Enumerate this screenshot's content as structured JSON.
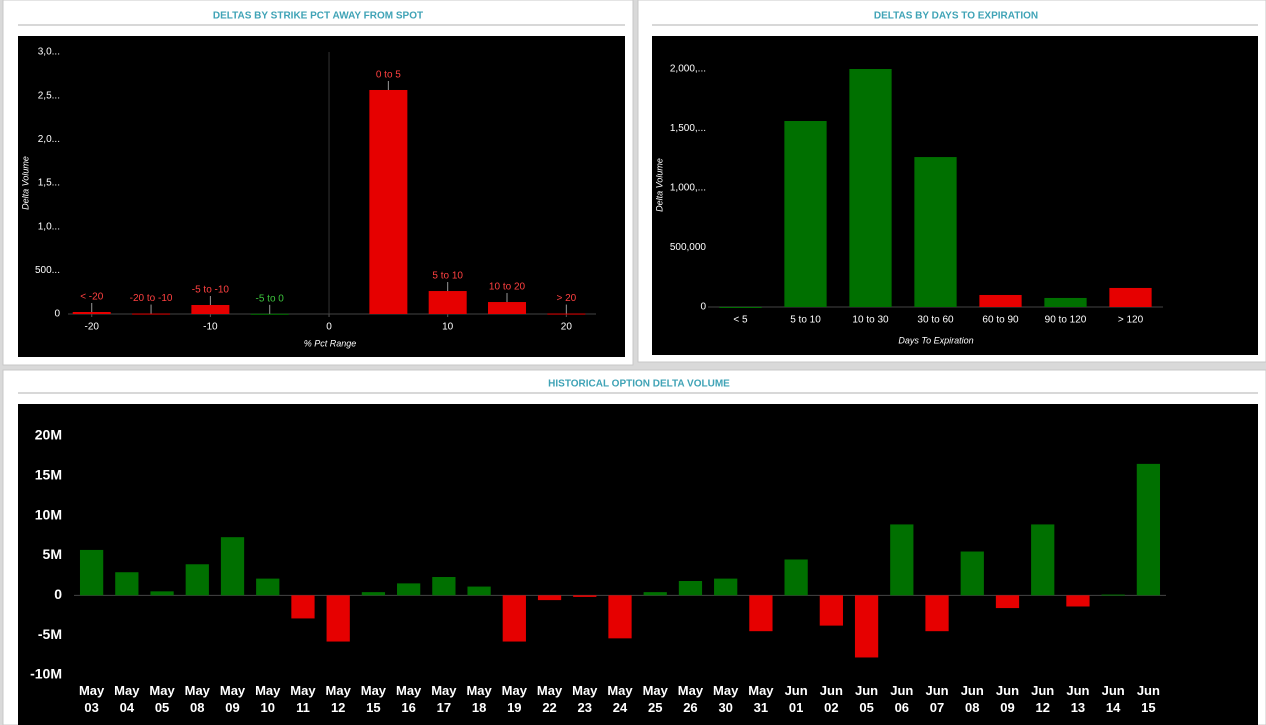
{
  "chart_data": [
    {
      "type": "bar",
      "title": "DELTAS BY STRIKE PCT AWAY FROM SPOT",
      "y_label": "Delta Volume",
      "x_label": "% Pct Range",
      "categories": [
        "< -20",
        "-20 to -10",
        "-5 to -10",
        "-5 to 0",
        "0 to 5",
        "5 to 10",
        "10 to 20",
        "> 20"
      ],
      "x": [
        -20,
        -15,
        -10,
        -5,
        5,
        10,
        15,
        20
      ],
      "values": [
        23000,
        5000,
        103000,
        2000,
        2565000,
        263000,
        137000,
        5000
      ],
      "colors": [
        "#e60000",
        "#e60000",
        "#e60000",
        "#007000",
        "#e60000",
        "#e60000",
        "#e60000",
        "#e60000"
      ],
      "xlim": [
        -22,
        22.5
      ],
      "xticks": [
        -20,
        -10,
        0,
        10,
        20
      ],
      "ylim": [
        0,
        3000000
      ],
      "yticks": [
        0,
        {
          "value": 500000,
          "label": "500..."
        },
        {
          "value": 1000000,
          "label": "1,0..."
        },
        {
          "value": 1500000,
          "label": "1,5..."
        },
        {
          "value": 2000000,
          "label": "2,0..."
        },
        {
          "value": 2500000,
          "label": "2,5..."
        },
        {
          "value": 3000000,
          "label": "3,0..."
        }
      ]
    },
    {
      "type": "bar",
      "title": "DELTAS BY DAYS TO EXPIRATION",
      "y_label": "Delta Volume",
      "x_label": "Days To Expiration",
      "categories": [
        "< 5",
        "5 to 10",
        "10 to 30",
        "30 to 60",
        "60 to 90",
        "90 to 120",
        "> 120"
      ],
      "values": [
        0,
        1563000,
        2000000,
        1260000,
        101000,
        76000,
        160000
      ],
      "colors": [
        "#007000",
        "#007000",
        "#007000",
        "#007000",
        "#e60000",
        "#007000",
        "#e60000"
      ],
      "ylim": [
        0,
        2000000
      ],
      "yticks": [
        0,
        {
          "value": 500000,
          "label": "500,000"
        },
        {
          "value": 1000000,
          "label": "1,000,..."
        },
        {
          "value": 1500000,
          "label": "1,500,..."
        },
        {
          "value": 2000000,
          "label": "2,000,..."
        }
      ]
    },
    {
      "type": "bar",
      "title": "HISTORICAL OPTION DELTA VOLUME",
      "categories": [
        "May 03",
        "May 04",
        "May 05",
        "May 08",
        "May 09",
        "May 10",
        "May 11",
        "May 12",
        "May 15",
        "May 16",
        "May 17",
        "May 18",
        "May 19",
        "May 22",
        "May 23",
        "May 24",
        "May 25",
        "May 26",
        "May 30",
        "May 31",
        "Jun 01",
        "Jun 02",
        "Jun 05",
        "Jun 06",
        "Jun 07",
        "Jun 08",
        "Jun 09",
        "Jun 12",
        "Jun 13",
        "Jun 14",
        "Jun 15"
      ],
      "values": [
        5700000,
        2900000,
        500000,
        3900000,
        7300000,
        2100000,
        -2900000,
        -5800000,
        400000,
        1500000,
        2300000,
        1100000,
        -5800000,
        -600000,
        -200000,
        -5400000,
        400000,
        1800000,
        2100000,
        -4500000,
        4500000,
        -3800000,
        -7800000,
        8900000,
        -4500000,
        5500000,
        -1600000,
        8900000,
        -1400000,
        100000,
        16500000
      ],
      "positive_color": "#007000",
      "negative_color": "#e60000",
      "ylim": [
        -10000000,
        20000000
      ],
      "yticks": [
        {
          "value": -10000000,
          "label": "-10M"
        },
        {
          "value": -5000000,
          "label": "-5M"
        },
        0,
        {
          "value": 5000000,
          "label": "5M"
        },
        {
          "value": 10000000,
          "label": "10M"
        },
        {
          "value": 15000000,
          "label": "15M"
        },
        {
          "value": 20000000,
          "label": "20M"
        }
      ]
    }
  ]
}
